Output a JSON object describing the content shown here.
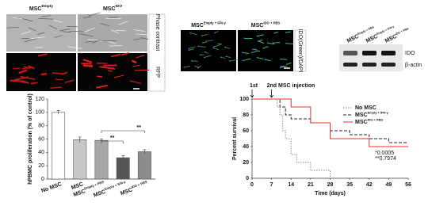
{
  "panels": {
    "microscopy": {
      "columns": [
        {
          "base": "MSC",
          "sup": "Empty"
        },
        {
          "base": "MSC",
          "sup": "IDO"
        }
      ],
      "rows": [
        "Phase contrast",
        "RFP"
      ]
    },
    "immunofluorescence": {
      "columns": [
        {
          "base": "MSC",
          "sup": "Empty + IFN-γ"
        },
        {
          "base": "MSC",
          "sup": "IDO + PBS"
        }
      ],
      "side_label": "IDO(Green)/DAPI"
    },
    "western_blot": {
      "lanes": [
        {
          "base": "MSC",
          "sup": "Empty + PBS"
        },
        {
          "base": "MSC",
          "sup": "Empty + IFN-γ"
        },
        {
          "base": "MSC",
          "sup": "IDO + PBS"
        }
      ],
      "bands": [
        "IDO",
        "β-actin"
      ]
    }
  },
  "chart_data": [
    {
      "type": "bar",
      "y_label": "hPBMC proliferation (% of control)",
      "categories": [
        "No MSC",
        "MSC",
        "MSC",
        "MSC",
        "MSC"
      ],
      "category_sup": [
        null,
        null,
        "Empty + PBS",
        "Empty + IFN-γ",
        "IDO + PBS"
      ],
      "values": [
        100,
        59,
        58,
        32,
        41
      ],
      "errors": [
        3,
        4,
        2,
        3,
        3
      ],
      "colors": [
        "#ffffff",
        "#c8c8c8",
        "#a8a8a8",
        "#555555",
        "#8c8c8c"
      ],
      "ylim": [
        0,
        120
      ],
      "yticks": [
        0,
        20,
        40,
        60,
        80,
        100,
        120
      ],
      "annotations": [
        "**",
        "**"
      ]
    },
    {
      "type": "line",
      "x_label": "Time (days)",
      "y_label": "Percent survival",
      "xlim": [
        0,
        56
      ],
      "xticks": [
        0,
        7,
        14,
        21,
        28,
        35,
        42,
        49,
        56
      ],
      "ylim": [
        0,
        100
      ],
      "yticks": [
        0,
        20,
        40,
        60,
        80,
        100
      ],
      "legend": "upper right",
      "annotations": [
        "1st",
        "2nd MSC injection",
        "*0.0005",
        "**0.7974"
      ],
      "series": [
        {
          "name": "No MSC",
          "sup": null,
          "color": "#888888",
          "dash": "1.5,1.5",
          "x": [
            0,
            9,
            9,
            10,
            10,
            11,
            11,
            12,
            12,
            14,
            14,
            16,
            16,
            21,
            21,
            28,
            28
          ],
          "values": [
            100,
            100,
            90,
            90,
            80,
            80,
            60,
            60,
            50,
            50,
            30,
            30,
            20,
            20,
            10,
            10,
            0
          ]
        },
        {
          "name": "MSC",
          "sup": "Empty + IFN-γ",
          "color": "#222222",
          "dash": "4,2",
          "x": [
            0,
            10,
            10,
            12,
            12,
            14,
            14,
            21,
            21,
            28,
            28,
            35,
            35,
            42,
            42,
            49,
            49,
            56
          ],
          "values": [
            100,
            100,
            90,
            90,
            80,
            80,
            75,
            75,
            70,
            70,
            60,
            60,
            55,
            55,
            50,
            50,
            45,
            45
          ]
        },
        {
          "name": "MSC",
          "sup": "IDO + PBS",
          "color": "#e03030",
          "dash": "none",
          "x": [
            0,
            14,
            14,
            21,
            21,
            28,
            28,
            42,
            42,
            56
          ],
          "values": [
            100,
            100,
            90,
            90,
            70,
            70,
            50,
            50,
            40,
            40
          ]
        }
      ]
    }
  ]
}
